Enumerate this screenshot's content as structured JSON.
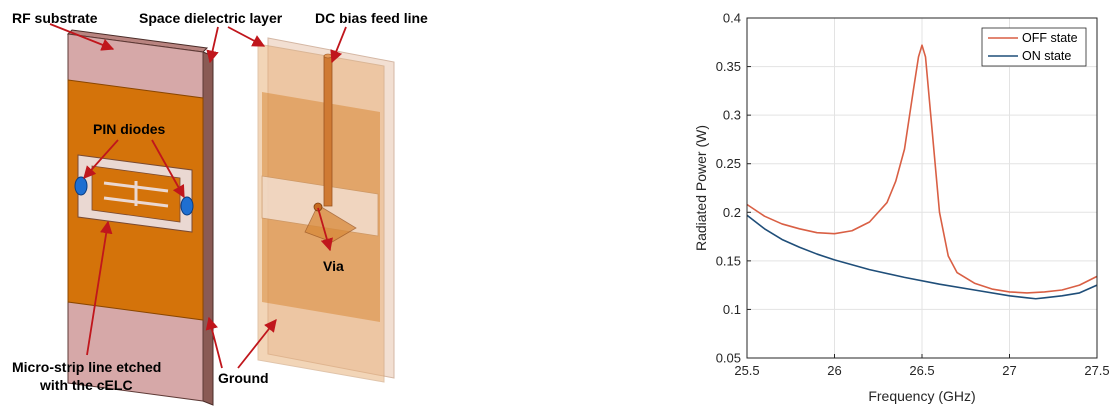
{
  "diagram": {
    "labels": {
      "rf_substrate": "RF substrate",
      "space_dielectric": "Space dielectric layer",
      "dc_bias": "DC bias feed line",
      "pin_diodes": "PIN diodes",
      "via": "Via",
      "microstrip_line1": "Micro-strip line etched",
      "microstrip_line2": "with the cELC",
      "ground": "Ground"
    },
    "colors": {
      "substrate": "#d6a8a8",
      "copper": "#d4730a",
      "diode": "#1e6fd1",
      "arrow": "#c0161c",
      "transparent_copper": "#e9b37e"
    }
  },
  "chart_data": {
    "type": "line",
    "xlabel": "Frequency (GHz)",
    "ylabel": "Radiated Power (W)",
    "xlim": [
      25.5,
      27.5
    ],
    "ylim": [
      0.05,
      0.4
    ],
    "xticks": [
      25.5,
      26,
      26.5,
      27,
      27.5
    ],
    "xtick_labels": [
      "25.5",
      "26",
      "26.5",
      "27",
      "27.5"
    ],
    "yticks": [
      0.05,
      0.1,
      0.15,
      0.2,
      0.25,
      0.3,
      0.35,
      0.4
    ],
    "ytick_labels": [
      "0.05",
      "0.1",
      "0.15",
      "0.2",
      "0.25",
      "0.3",
      "0.35",
      "0.4"
    ],
    "grid": true,
    "legend_position": "top-right",
    "series": [
      {
        "name": "OFF state",
        "color": "#d95f44",
        "x": [
          25.5,
          25.6,
          25.7,
          25.8,
          25.9,
          26.0,
          26.1,
          26.2,
          26.3,
          26.35,
          26.4,
          26.45,
          26.48,
          26.5,
          26.52,
          26.55,
          26.6,
          26.65,
          26.7,
          26.8,
          26.9,
          27.0,
          27.1,
          27.2,
          27.3,
          27.4,
          27.5
        ],
        "y": [
          0.208,
          0.196,
          0.188,
          0.183,
          0.179,
          0.178,
          0.181,
          0.19,
          0.21,
          0.232,
          0.265,
          0.325,
          0.36,
          0.372,
          0.36,
          0.3,
          0.2,
          0.155,
          0.138,
          0.127,
          0.121,
          0.118,
          0.117,
          0.118,
          0.12,
          0.125,
          0.134
        ]
      },
      {
        "name": "ON state",
        "color": "#1f4e79",
        "x": [
          25.5,
          25.6,
          25.7,
          25.8,
          25.9,
          26.0,
          26.2,
          26.4,
          26.6,
          26.8,
          27.0,
          27.1,
          27.15,
          27.2,
          27.3,
          27.4,
          27.5
        ],
        "y": [
          0.197,
          0.183,
          0.172,
          0.164,
          0.157,
          0.151,
          0.141,
          0.133,
          0.126,
          0.12,
          0.114,
          0.112,
          0.111,
          0.112,
          0.114,
          0.117,
          0.125
        ]
      }
    ]
  }
}
